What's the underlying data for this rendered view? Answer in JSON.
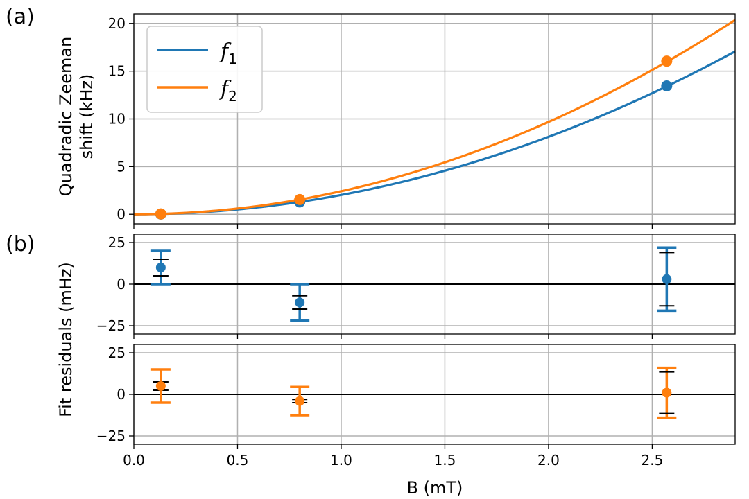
{
  "chart_data": [
    {
      "panel": "(a)",
      "type": "line",
      "ylabel": [
        "Quadradic Zeeman",
        "shift (kHz)"
      ],
      "xlim": [
        0,
        2.9
      ],
      "ylim": [
        -1,
        21
      ],
      "xticks": [
        0.0,
        0.5,
        1.0,
        1.5,
        2.0,
        2.5
      ],
      "yticks": [
        0,
        5,
        10,
        15,
        20
      ],
      "grid": true,
      "legend_placement": "top-left",
      "series": [
        {
          "name": "f1",
          "color": "#1f77b4",
          "curve_coefficient_kHz_per_mT2": 2.03,
          "points": [
            [
              0.13,
              0.03
            ],
            [
              0.8,
              1.3
            ],
            [
              2.57,
              13.45
            ]
          ]
        },
        {
          "name": "f2",
          "color": "#ff7f0e",
          "curve_coefficient_kHz_per_mT2": 2.42,
          "points": [
            [
              0.13,
              0.04
            ],
            [
              0.8,
              1.55
            ],
            [
              2.57,
              16.05
            ]
          ]
        }
      ]
    },
    {
      "panel": "(b)",
      "type": "scatter",
      "series_name": "f1",
      "color": "#1f77b4",
      "xlim": [
        0,
        2.9
      ],
      "ylim": [
        -30,
        30
      ],
      "yticks": [
        -25,
        0,
        25
      ],
      "grid": true,
      "points": [
        {
          "x": 0.13,
          "y": 10,
          "err_outer": 10,
          "err_inner": 5
        },
        {
          "x": 0.8,
          "y": -11,
          "err_outer": 11,
          "err_inner": 4
        },
        {
          "x": 2.57,
          "y": 3,
          "err_outer": 19,
          "err_inner": 16
        }
      ]
    },
    {
      "panel": "",
      "type": "scatter",
      "series_name": "f2",
      "color": "#ff7f0e",
      "xlim": [
        0,
        2.9
      ],
      "ylim": [
        -30,
        30
      ],
      "yticks": [
        -25,
        0,
        25
      ],
      "grid": true,
      "points": [
        {
          "x": 0.13,
          "y": 5,
          "err_outer": 10,
          "err_inner": 2.5
        },
        {
          "x": 0.8,
          "y": -4,
          "err_outer": 8.5,
          "err_inner": 1
        },
        {
          "x": 2.57,
          "y": 1,
          "err_outer": 15,
          "err_inner": 12.5
        }
      ]
    }
  ],
  "shared": {
    "xlabel": "B (mT)",
    "residual_ylabel": "Fit residuals (mHz)",
    "panel_a_label": "(a)",
    "panel_b_label": "(b)"
  }
}
